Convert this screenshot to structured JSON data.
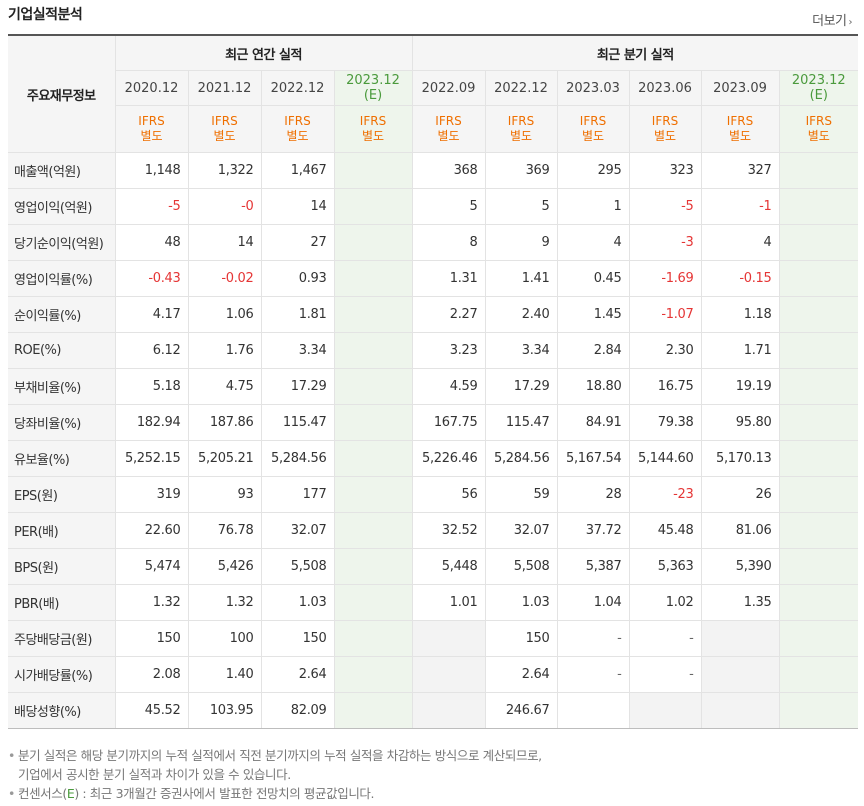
{
  "title": "기업실적분석",
  "more_label": "더보기",
  "table": {
    "corner_label": "주요재무정보",
    "groups": [
      "최근 연간 실적",
      "최근 분기 실적"
    ],
    "periods": [
      {
        "label": "2020.12",
        "est": false
      },
      {
        "label": "2021.12",
        "est": false
      },
      {
        "label": "2022.12",
        "est": false
      },
      {
        "label": "2023.12",
        "sub": "(E)",
        "est": true
      },
      {
        "label": "2022.09",
        "est": false
      },
      {
        "label": "2022.12",
        "est": false
      },
      {
        "label": "2023.03",
        "est": false
      },
      {
        "label": "2023.06",
        "est": false
      },
      {
        "label": "2023.09",
        "est": false
      },
      {
        "label": "2023.12",
        "sub": "(E)",
        "est": true
      }
    ],
    "ifrs_line1": "IFRS",
    "ifrs_line2": "별도",
    "rows": [
      {
        "label": "매출액(억원)",
        "values": [
          "1,148",
          "1,322",
          "1,467",
          "",
          "368",
          "369",
          "295",
          "323",
          "327",
          ""
        ]
      },
      {
        "label": "영업이익(억원)",
        "values": [
          "-5",
          "-0",
          "14",
          "",
          "5",
          "5",
          "1",
          "-5",
          "-1",
          ""
        ]
      },
      {
        "label": "당기순이익(억원)",
        "values": [
          "48",
          "14",
          "27",
          "",
          "8",
          "9",
          "4",
          "-3",
          "4",
          ""
        ]
      },
      {
        "label": "영업이익률(%)",
        "values": [
          "-0.43",
          "-0.02",
          "0.93",
          "",
          "1.31",
          "1.41",
          "0.45",
          "-1.69",
          "-0.15",
          ""
        ]
      },
      {
        "label": "순이익률(%)",
        "values": [
          "4.17",
          "1.06",
          "1.81",
          "",
          "2.27",
          "2.40",
          "1.45",
          "-1.07",
          "1.18",
          ""
        ]
      },
      {
        "label": "ROE(%)",
        "values": [
          "6.12",
          "1.76",
          "3.34",
          "",
          "3.23",
          "3.34",
          "2.84",
          "2.30",
          "1.71",
          ""
        ]
      },
      {
        "label": "부채비율(%)",
        "values": [
          "5.18",
          "4.75",
          "17.29",
          "",
          "4.59",
          "17.29",
          "18.80",
          "16.75",
          "19.19",
          ""
        ]
      },
      {
        "label": "당좌비율(%)",
        "values": [
          "182.94",
          "187.86",
          "115.47",
          "",
          "167.75",
          "115.47",
          "84.91",
          "79.38",
          "95.80",
          ""
        ]
      },
      {
        "label": "유보율(%)",
        "values": [
          "5,252.15",
          "5,205.21",
          "5,284.56",
          "",
          "5,226.46",
          "5,284.56",
          "5,167.54",
          "5,144.60",
          "5,170.13",
          ""
        ]
      },
      {
        "label": "EPS(원)",
        "values": [
          "319",
          "93",
          "177",
          "",
          "56",
          "59",
          "28",
          "-23",
          "26",
          ""
        ]
      },
      {
        "label": "PER(배)",
        "values": [
          "22.60",
          "76.78",
          "32.07",
          "",
          "32.52",
          "32.07",
          "37.72",
          "45.48",
          "81.06",
          ""
        ]
      },
      {
        "label": "BPS(원)",
        "values": [
          "5,474",
          "5,426",
          "5,508",
          "",
          "5,448",
          "5,508",
          "5,387",
          "5,363",
          "5,390",
          ""
        ]
      },
      {
        "label": "PBR(배)",
        "values": [
          "1.32",
          "1.32",
          "1.03",
          "",
          "1.01",
          "1.03",
          "1.04",
          "1.02",
          "1.35",
          ""
        ]
      },
      {
        "label": "주당배당금(원)",
        "values": [
          "150",
          "100",
          "150",
          "",
          "",
          "150",
          "-",
          "-",
          "",
          ""
        ]
      },
      {
        "label": "시가배당률(%)",
        "values": [
          "2.08",
          "1.40",
          "2.64",
          "",
          "",
          "2.64",
          "-",
          "-",
          "",
          ""
        ]
      },
      {
        "label": "배당성향(%)",
        "values": [
          "45.52",
          "103.95",
          "82.09",
          "",
          "",
          "246.67",
          "",
          "",
          "",
          ""
        ]
      }
    ]
  },
  "notes": {
    "line1": "분기 실적은 해당 분기까지의 누적 실적에서 직전 분기까지의 누적 실적을 차감하는 방식으로 계산되므로,",
    "line2": "기업에서 공시한 분기 실적과 차이가 있을 수 있습니다.",
    "line3_prefix": "컨센서스(",
    "line3_e": "E",
    "line3_suffix": ") : 최근 3개월간 증권사에서 발표한 전망치의 평균값입니다."
  },
  "colors": {
    "negative": "#e53535",
    "estimate_bg": "#eef5ec",
    "estimate_text": "#4a9a3c",
    "ifrs": "#ef6f00"
  }
}
